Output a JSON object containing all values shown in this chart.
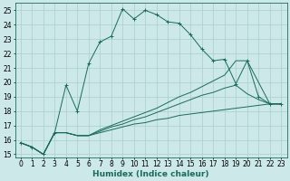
{
  "xlabel": "Humidex (Indice chaleur)",
  "bg_color": "#cce8e8",
  "grid_color": "#aacece",
  "line_color": "#1a6b5a",
  "xlim": [
    -0.5,
    23.5
  ],
  "ylim": [
    14.8,
    25.5
  ],
  "yticks": [
    15,
    16,
    17,
    18,
    19,
    20,
    21,
    22,
    23,
    24,
    25
  ],
  "xticks": [
    0,
    1,
    2,
    3,
    4,
    5,
    6,
    7,
    8,
    9,
    10,
    11,
    12,
    13,
    14,
    15,
    16,
    17,
    18,
    19,
    20,
    21,
    22,
    23
  ],
  "lines": [
    {
      "x": [
        0,
        1,
        2,
        3,
        4,
        5,
        6,
        7,
        8,
        9,
        10,
        11,
        12,
        13,
        14,
        15,
        16,
        17,
        18,
        19,
        20,
        21,
        22,
        23
      ],
      "y": [
        15.8,
        15.5,
        15.0,
        16.5,
        19.8,
        18.0,
        21.3,
        22.8,
        23.2,
        25.1,
        24.4,
        25.0,
        24.7,
        24.2,
        24.1,
        23.3,
        22.3,
        21.5,
        21.6,
        19.9,
        21.5,
        19.0,
        18.5,
        18.5
      ],
      "marker": "+"
    },
    {
      "x": [
        0,
        1,
        2,
        3,
        4,
        5,
        6,
        7,
        8,
        9,
        10,
        11,
        12,
        13,
        14,
        15,
        16,
        17,
        18,
        19,
        20,
        21,
        22,
        23
      ],
      "y": [
        15.8,
        15.5,
        15.0,
        16.5,
        16.5,
        16.3,
        16.3,
        16.5,
        16.7,
        16.9,
        17.1,
        17.2,
        17.4,
        17.5,
        17.7,
        17.8,
        17.9,
        18.0,
        18.1,
        18.2,
        18.3,
        18.4,
        18.5,
        18.5
      ],
      "marker": null
    },
    {
      "x": [
        0,
        1,
        2,
        3,
        4,
        5,
        6,
        7,
        8,
        9,
        10,
        11,
        12,
        13,
        14,
        15,
        16,
        17,
        18,
        19,
        20,
        21,
        22,
        23
      ],
      "y": [
        15.8,
        15.5,
        15.0,
        16.5,
        16.5,
        16.3,
        16.3,
        16.6,
        16.9,
        17.1,
        17.4,
        17.6,
        17.9,
        18.2,
        18.5,
        18.8,
        19.1,
        19.3,
        19.6,
        19.8,
        19.2,
        18.8,
        18.5,
        18.5
      ],
      "marker": null
    },
    {
      "x": [
        0,
        1,
        2,
        3,
        4,
        5,
        6,
        7,
        8,
        9,
        10,
        11,
        12,
        13,
        14,
        15,
        16,
        17,
        18,
        19,
        20,
        21,
        22,
        23
      ],
      "y": [
        15.8,
        15.5,
        15.0,
        16.5,
        16.5,
        16.3,
        16.3,
        16.7,
        17.0,
        17.3,
        17.6,
        17.9,
        18.2,
        18.6,
        19.0,
        19.3,
        19.7,
        20.1,
        20.5,
        21.5,
        21.5,
        20.0,
        18.5,
        18.5
      ],
      "marker": null
    }
  ],
  "tick_fontsize": 5.5,
  "xlabel_fontsize": 6.5
}
